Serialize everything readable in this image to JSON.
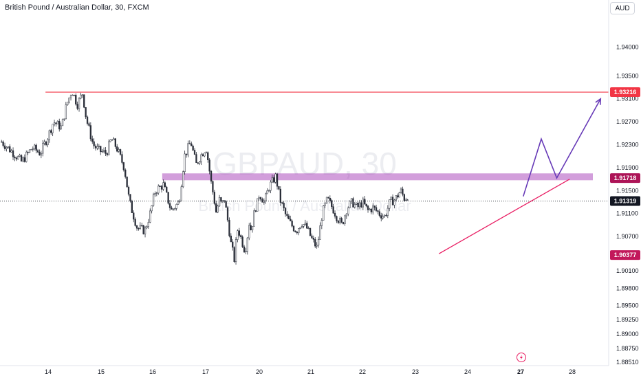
{
  "header": {
    "title": "British Pound / Australian Dollar, 30, FXCM",
    "currency_button": "AUD"
  },
  "watermark": {
    "symbol": "GBPAUD, 30",
    "description": "British Pound / Australian Dollar"
  },
  "chart_data": {
    "type": "candlestick",
    "symbol": "GBPAUD",
    "interval": "30",
    "source": "FXCM",
    "y_range": [
      1.8851,
      1.9445
    ],
    "y_ticks": [
      "1.94000",
      "1.93500",
      "1.93100",
      "1.92700",
      "1.92300",
      "1.91900",
      "1.91500",
      "1.91100",
      "1.90700",
      "1.90100",
      "1.89800",
      "1.89500",
      "1.89250",
      "1.89000",
      "1.88750",
      "1.88510"
    ],
    "x_ticks": [
      {
        "label": "14",
        "day": 14
      },
      {
        "label": "15",
        "day": 15
      },
      {
        "label": "16",
        "day": 16
      },
      {
        "label": "17",
        "day": 17
      },
      {
        "label": "20",
        "day": 20
      },
      {
        "label": "21",
        "day": 21
      },
      {
        "label": "22",
        "day": 22
      },
      {
        "label": "23",
        "day": 23
      },
      {
        "label": "24",
        "day": 24
      },
      {
        "label": "27",
        "day": 27,
        "bold": true
      },
      {
        "label": "28",
        "day": 28
      }
    ],
    "price_path": [
      [
        13.12,
        1.9235
      ],
      [
        13.35,
        1.9215
      ],
      [
        13.5,
        1.92
      ],
      [
        13.7,
        1.9225
      ],
      [
        13.85,
        1.9215
      ],
      [
        14.0,
        1.9245
      ],
      [
        14.1,
        1.927
      ],
      [
        14.25,
        1.926
      ],
      [
        14.35,
        1.93
      ],
      [
        14.45,
        1.9325
      ],
      [
        14.55,
        1.93
      ],
      [
        14.65,
        1.932
      ],
      [
        14.72,
        1.9275
      ],
      [
        14.85,
        1.923
      ],
      [
        14.95,
        1.922
      ],
      [
        15.1,
        1.9215
      ],
      [
        15.2,
        1.924
      ],
      [
        15.3,
        1.9225
      ],
      [
        15.45,
        1.919
      ],
      [
        15.55,
        1.913
      ],
      [
        15.7,
        1.9085
      ],
      [
        15.85,
        1.908
      ],
      [
        15.95,
        1.911
      ],
      [
        16.05,
        1.915
      ],
      [
        16.2,
        1.916
      ],
      [
        16.35,
        1.9115
      ],
      [
        16.5,
        1.913
      ],
      [
        16.6,
        1.921
      ],
      [
        16.72,
        1.9235
      ],
      [
        16.82,
        1.9195
      ],
      [
        16.9,
        1.921
      ],
      [
        17.02,
        1.9225
      ],
      [
        17.15,
        1.92
      ],
      [
        17.3,
        1.9165
      ],
      [
        17.45,
        1.914
      ],
      [
        17.6,
        1.911
      ],
      [
        17.75,
        1.9135
      ],
      [
        17.9,
        1.9125
      ],
      [
        18.05,
        1.9135
      ],
      [
        18.15,
        1.9115
      ],
      [
        18.3,
        1.9085
      ],
      [
        18.4,
        1.906
      ],
      [
        18.5,
        1.9045
      ],
      [
        18.6,
        1.903
      ],
      [
        18.7,
        1.906
      ],
      [
        18.8,
        1.9085
      ],
      [
        18.95,
        1.907
      ],
      [
        19.05,
        1.906
      ],
      [
        19.2,
        1.9045
      ],
      [
        19.3,
        1.906
      ],
      [
        19.42,
        1.9095
      ],
      [
        19.55,
        1.908
      ],
      [
        19.65,
        1.91
      ],
      [
        19.78,
        1.912
      ],
      [
        19.92,
        1.913
      ],
      [
        20.0,
        1.9145
      ],
      [
        20.1,
        1.913
      ],
      [
        20.18,
        1.9155
      ],
      [
        20.25,
        1.9165
      ],
      [
        20.32,
        1.9175
      ],
      [
        20.4,
        1.9135
      ],
      [
        20.52,
        1.9105
      ],
      [
        20.62,
        1.909
      ],
      [
        20.72,
        1.908
      ],
      [
        20.82,
        1.9095
      ],
      [
        20.92,
        1.9085
      ],
      [
        21.02,
        1.9065
      ],
      [
        21.12,
        1.905
      ],
      [
        21.22,
        1.911
      ],
      [
        21.32,
        1.9135
      ],
      [
        21.42,
        1.912
      ],
      [
        21.5,
        1.9105
      ],
      [
        21.6,
        1.909
      ],
      [
        21.7,
        1.912
      ],
      [
        21.8,
        1.913
      ],
      [
        21.9,
        1.912
      ],
      [
        22.0,
        1.913
      ],
      [
        22.1,
        1.9115
      ],
      [
        22.2,
        1.912
      ],
      [
        22.32,
        1.911
      ],
      [
        22.42,
        1.9105
      ],
      [
        22.52,
        1.913
      ],
      [
        22.62,
        1.9135
      ],
      [
        22.72,
        1.915
      ],
      [
        22.8,
        1.9135
      ],
      [
        22.88,
        1.9145
      ]
    ],
    "annotations": {
      "resistance_line": {
        "price": 1.93216,
        "label": "1.93216",
        "color": "#f23645"
      },
      "supply_zone": {
        "top": 1.918,
        "bottom": 1.9168,
        "label": "1.91718",
        "color": "#9c27b0"
      },
      "current_price": {
        "price": 1.91319,
        "label": "1.91319"
      },
      "support_label": {
        "price": 1.90377,
        "label": "1.90377",
        "color": "#c2185b"
      },
      "trendline": {
        "from": [
          23.45,
          1.904
        ],
        "to": [
          27.95,
          1.917
        ],
        "color": "#e91e63"
      },
      "projection": [
        [
          27.05,
          1.914
        ],
        [
          27.4,
          1.924
        ],
        [
          27.7,
          1.9172
        ],
        [
          28.55,
          1.931
        ]
      ],
      "projection_color": "#673ab7"
    }
  },
  "colors": {
    "candle": "#2a2e39",
    "axis_border": "#e0e3eb",
    "current_tag": "#131722"
  }
}
